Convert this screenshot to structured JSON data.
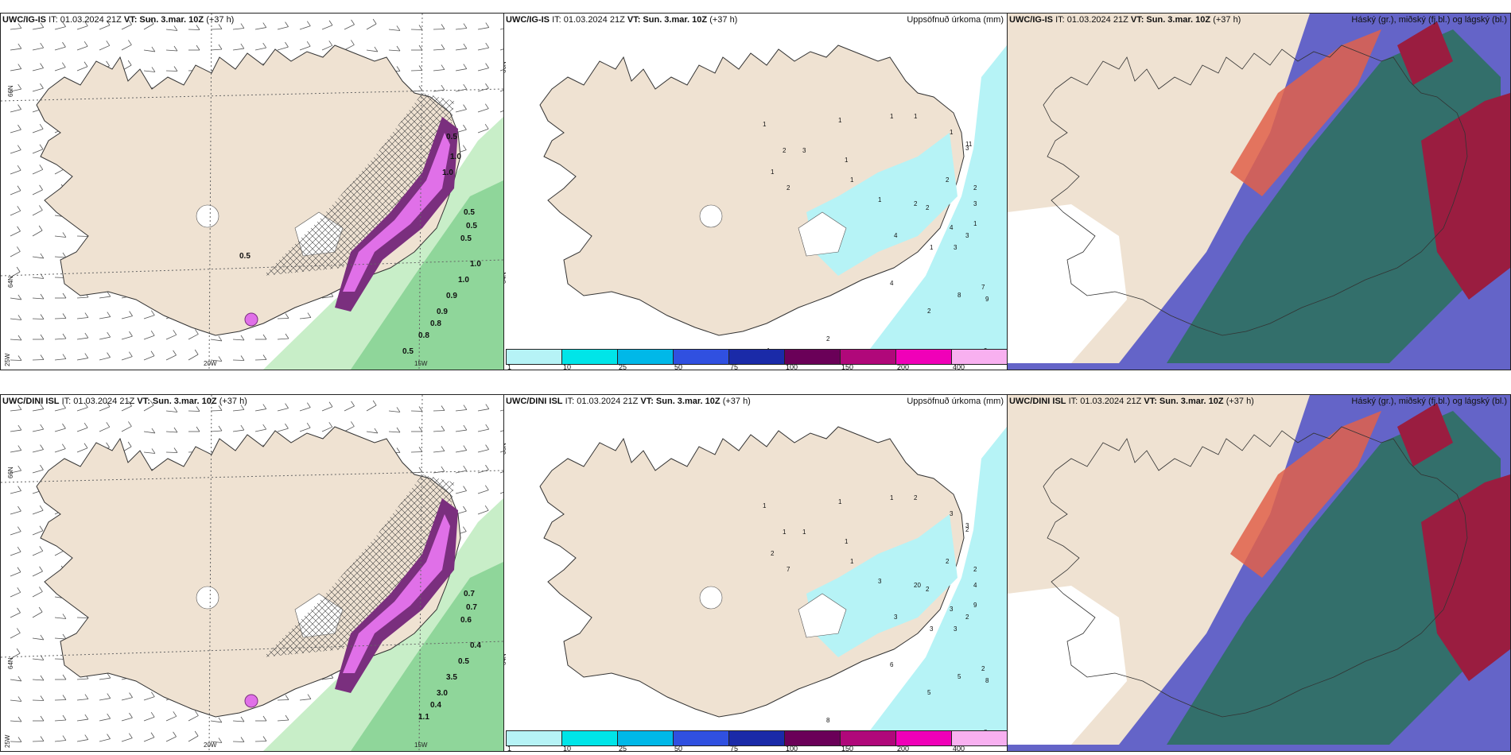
{
  "colors": {
    "land": "#efe2d2",
    "sea": "#ffffff",
    "precip_light": "#b6f3f6",
    "purple_dark": "#7a2f7e",
    "purple_light": "#e070e8",
    "green_light": "#c8eec8",
    "green_mid": "#8fd69a",
    "blue_low_cloud": "#6464c8",
    "green_high_cloud": "#2d7060",
    "red_mid_cloud": "#9a1d40"
  },
  "colorbar": {
    "colors": [
      "#b6f3f6",
      "#00e5e8",
      "#00b8e8",
      "#3050e0",
      "#1a2aa8",
      "#6a0058",
      "#b0087a",
      "#f000b8",
      "#f8b0f0"
    ],
    "labels": [
      "1",
      "10",
      "25",
      "50",
      "75",
      "100",
      "150",
      "200",
      "400"
    ]
  },
  "panels": [
    {
      "model": "UWC/IG-IS",
      "it_prefix": "IT: 01.03.2024 21Z",
      "vt_prefix": "VT:",
      "vt_value": "Sun. 3.mar. 10Z",
      "lead": "(+37 h)",
      "right_title": "",
      "axis": {
        "lat1": "66N",
        "lat2": "64N",
        "lon1": "20W",
        "lon2": "15W",
        "lon3": "25W"
      },
      "values": [
        "0.5",
        "0.5",
        "0.5",
        "1.0",
        "1.0",
        "0.9",
        "0.9",
        "0.8",
        "0.8",
        "0.5",
        "0.5",
        "1.0",
        "1.0",
        "0.5"
      ]
    },
    {
      "model": "UWC/IG-IS",
      "it_prefix": "IT: 01.03.2024 21Z",
      "vt_prefix": "VT:",
      "vt_value": "Sun. 3.mar. 10Z",
      "lead": "(+37 h)",
      "right_title": "Uppsöfnuð úrkoma (mm)",
      "axis": {
        "lat1": "66N",
        "lat2": "64N"
      },
      "values": [
        "1",
        "1",
        "2",
        "3",
        "1",
        "1",
        "1",
        "1",
        "2",
        "1",
        "1",
        "2",
        "1",
        "2",
        "3",
        "2",
        "4",
        "4",
        "2",
        "3",
        "1",
        "11",
        "3",
        "3",
        "4",
        "1",
        "2",
        "7",
        "8",
        "9",
        "9",
        "2",
        "1"
      ]
    },
    {
      "model": "UWC/IG-IS",
      "it_prefix": "IT: 01.03.2024 21Z",
      "vt_prefix": "VT:",
      "vt_value": "Sun. 3.mar. 10Z",
      "lead": "(+37 h)",
      "right_title": "Háský (gr.), miðský (fj.bl.) og lágský (bl.)",
      "values": []
    },
    {
      "model": "UWC/DINI ISL",
      "it_prefix": "IT: 01.03.2024 21Z",
      "vt_prefix": "VT:",
      "vt_value": "Sun. 3.mar. 10Z",
      "lead": "(+37 h)",
      "right_title": "",
      "axis": {
        "lat1": "66N",
        "lat2": "64N",
        "lon1": "20W",
        "lon2": "15W",
        "lon3": "25W"
      },
      "values": [
        "0.7",
        "0.7",
        "0.6",
        "0.4",
        "0.5",
        "3.5",
        "3.0",
        "0.4",
        "1.1"
      ]
    },
    {
      "model": "UWC/DINI ISL",
      "it_prefix": "IT: 01.03.2024 21Z",
      "vt_prefix": "VT:",
      "vt_value": "Sun. 3.mar. 10Z",
      "lead": "(+37 h)",
      "right_title": "Uppsöfnuð úrkoma (mm)",
      "axis": {
        "lat1": "66N",
        "lat2": "64N"
      },
      "values": [
        "1",
        "1",
        "1",
        "1",
        "2",
        "1",
        "2",
        "3",
        "7",
        "1",
        "1",
        "20",
        "3",
        "2",
        "2",
        "2",
        "3",
        "3",
        "2",
        "4",
        "3",
        "3",
        "3",
        "2",
        "6",
        "9",
        "5",
        "2",
        "5",
        "8",
        "8",
        "8"
      ]
    },
    {
      "model": "UWC/DINI ISL",
      "it_prefix": "IT: 01.03.2024 21Z",
      "vt_prefix": "VT:",
      "vt_value": "Sun. 3.mar. 10Z",
      "lead": "(+37 h)",
      "right_title": "Háský (gr.), miðský (fj.bl.) og lágský (bl.)",
      "values": []
    }
  ]
}
